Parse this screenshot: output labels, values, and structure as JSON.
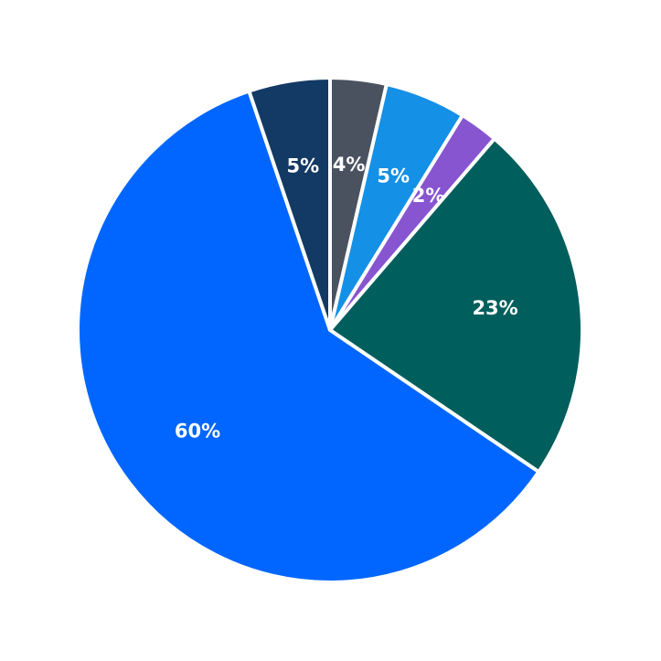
{
  "chart_data": {
    "type": "pie",
    "title": "",
    "start": "top",
    "direction": "clockwise",
    "slices": [
      {
        "label": "4%",
        "value": 3.6,
        "color": "#4A5260"
      },
      {
        "label": "5%",
        "value": 5.2,
        "color": "#1490E6"
      },
      {
        "label": "2%",
        "value": 2.5,
        "color": "#8755D0"
      },
      {
        "label": "23%",
        "value": 23.2,
        "color": "#005E5C"
      },
      {
        "label": "60%",
        "value": 60.3,
        "color": "#0066FF"
      },
      {
        "label": "5%",
        "value": 5.2,
        "color": "#133A64"
      }
    ]
  }
}
